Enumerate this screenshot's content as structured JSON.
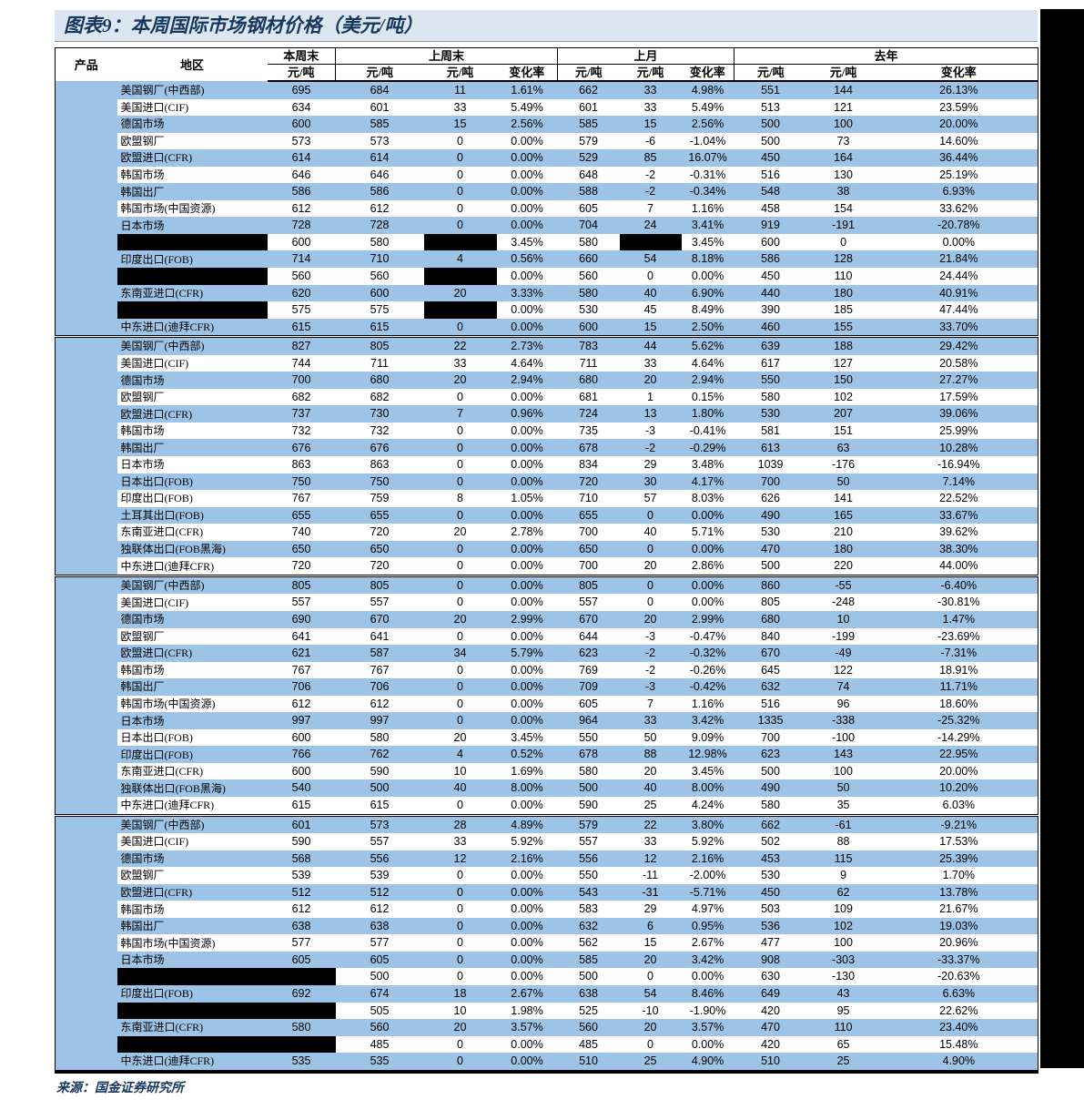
{
  "title": "图表9：本周国际市场钢材价格（美元/吨）",
  "source": "来源：国金证券研究所",
  "colors": {
    "stripe_blue": "#9DC3E6",
    "title_bar_bg": "#DCE6F1",
    "title_text": "#17375D",
    "redaction": "#000000"
  },
  "header": {
    "product": "产品",
    "region": "地区",
    "groups": [
      {
        "label": "本周末",
        "cols": [
          "元/吨"
        ]
      },
      {
        "label": "上周末",
        "cols": [
          "元/吨",
          "元/吨",
          "变化率"
        ]
      },
      {
        "label": "上月",
        "cols": [
          "元/吨",
          "元/吨",
          "变化率"
        ]
      },
      {
        "label": "去年",
        "cols": [
          "元/吨",
          "元/吨",
          "变化率"
        ]
      }
    ]
  },
  "sections": [
    {
      "product": null,
      "rows": [
        {
          "region": "美国钢厂(中西部)",
          "cells": [
            "695",
            "684",
            "11",
            "1.61%",
            "662",
            "33",
            "4.98%",
            "551",
            "144",
            "26.13%"
          ]
        },
        {
          "region": "美国进口(CIF)",
          "cells": [
            "634",
            "601",
            "33",
            "5.49%",
            "601",
            "33",
            "5.49%",
            "513",
            "121",
            "23.59%"
          ]
        },
        {
          "region": "德国市场",
          "cells": [
            "600",
            "585",
            "15",
            "2.56%",
            "585",
            "15",
            "2.56%",
            "500",
            "100",
            "20.00%"
          ]
        },
        {
          "region": "欧盟钢厂",
          "cells": [
            "573",
            "573",
            "0",
            "0.00%",
            "579",
            "-6",
            "-1.04%",
            "500",
            "73",
            "14.60%"
          ]
        },
        {
          "region": "欧盟进口(CFR)",
          "cells": [
            "614",
            "614",
            "0",
            "0.00%",
            "529",
            "85",
            "16.07%",
            "450",
            "164",
            "36.44%"
          ]
        },
        {
          "region": "韩国市场",
          "cells": [
            "646",
            "646",
            "0",
            "0.00%",
            "648",
            "-2",
            "-0.31%",
            "516",
            "130",
            "25.19%"
          ]
        },
        {
          "region": "韩国出厂",
          "cells": [
            "586",
            "586",
            "0",
            "0.00%",
            "588",
            "-2",
            "-0.34%",
            "548",
            "38",
            "6.93%"
          ]
        },
        {
          "region": "韩国市场(中国资源)",
          "cells": [
            "612",
            "612",
            "0",
            "0.00%",
            "605",
            "7",
            "1.16%",
            "458",
            "154",
            "33.62%"
          ]
        },
        {
          "region": "日本市场",
          "cells": [
            "728",
            "728",
            "0",
            "0.00%",
            "704",
            "24",
            "3.41%",
            "919",
            "-191",
            "-20.78%"
          ]
        },
        {
          "region": null,
          "cells": [
            "600",
            "580",
            null,
            "3.45%",
            "580",
            null,
            "3.45%",
            "600",
            "0",
            "0.00%"
          ]
        },
        {
          "region": "印度出口(FOB)",
          "cells": [
            "714",
            "710",
            "4",
            "0.56%",
            "660",
            "54",
            "8.18%",
            "586",
            "128",
            "21.84%"
          ]
        },
        {
          "region": null,
          "cells": [
            "560",
            "560",
            null,
            "0.00%",
            "560",
            "0",
            "0.00%",
            "450",
            "110",
            "24.44%"
          ]
        },
        {
          "region": "东南亚进口(CFR)",
          "cells": [
            "620",
            "600",
            "20",
            "3.33%",
            "580",
            "40",
            "6.90%",
            "440",
            "180",
            "40.91%"
          ]
        },
        {
          "region": null,
          "cells": [
            "575",
            "575",
            null,
            "0.00%",
            "530",
            "45",
            "8.49%",
            "390",
            "185",
            "47.44%"
          ]
        },
        {
          "region": "中东进口(迪拜CFR)",
          "cells": [
            "615",
            "615",
            "0",
            "0.00%",
            "600",
            "15",
            "2.50%",
            "460",
            "155",
            "33.70%"
          ]
        }
      ]
    },
    {
      "product": null,
      "rows": [
        {
          "region": "美国钢厂(中西部)",
          "cells": [
            "827",
            "805",
            "22",
            "2.73%",
            "783",
            "44",
            "5.62%",
            "639",
            "188",
            "29.42%"
          ]
        },
        {
          "region": "美国进口(CIF)",
          "cells": [
            "744",
            "711",
            "33",
            "4.64%",
            "711",
            "33",
            "4.64%",
            "617",
            "127",
            "20.58%"
          ]
        },
        {
          "region": "德国市场",
          "cells": [
            "700",
            "680",
            "20",
            "2.94%",
            "680",
            "20",
            "2.94%",
            "550",
            "150",
            "27.27%"
          ]
        },
        {
          "region": "欧盟钢厂",
          "cells": [
            "682",
            "682",
            "0",
            "0.00%",
            "681",
            "1",
            "0.15%",
            "580",
            "102",
            "17.59%"
          ]
        },
        {
          "region": "欧盟进口(CFR)",
          "cells": [
            "737",
            "730",
            "7",
            "0.96%",
            "724",
            "13",
            "1.80%",
            "530",
            "207",
            "39.06%"
          ]
        },
        {
          "region": "韩国市场",
          "cells": [
            "732",
            "732",
            "0",
            "0.00%",
            "735",
            "-3",
            "-0.41%",
            "581",
            "151",
            "25.99%"
          ]
        },
        {
          "region": "韩国出厂",
          "cells": [
            "676",
            "676",
            "0",
            "0.00%",
            "678",
            "-2",
            "-0.29%",
            "613",
            "63",
            "10.28%"
          ]
        },
        {
          "region": "日本市场",
          "cells": [
            "863",
            "863",
            "0",
            "0.00%",
            "834",
            "29",
            "3.48%",
            "1039",
            "-176",
            "-16.94%"
          ]
        },
        {
          "region": "日本出口(FOB)",
          "cells": [
            "750",
            "750",
            "0",
            "0.00%",
            "720",
            "30",
            "4.17%",
            "700",
            "50",
            "7.14%"
          ]
        },
        {
          "region": "印度出口(FOB)",
          "cells": [
            "767",
            "759",
            "8",
            "1.05%",
            "710",
            "57",
            "8.03%",
            "626",
            "141",
            "22.52%"
          ]
        },
        {
          "region": "土耳其出口(FOB)",
          "cells": [
            "655",
            "655",
            "0",
            "0.00%",
            "655",
            "0",
            "0.00%",
            "490",
            "165",
            "33.67%"
          ]
        },
        {
          "region": "东南亚进口(CFR)",
          "cells": [
            "740",
            "720",
            "20",
            "2.78%",
            "700",
            "40",
            "5.71%",
            "530",
            "210",
            "39.62%"
          ]
        },
        {
          "region": "独联体出口(FOB黑海)",
          "cells": [
            "650",
            "650",
            "0",
            "0.00%",
            "650",
            "0",
            "0.00%",
            "470",
            "180",
            "38.30%"
          ]
        },
        {
          "region": "中东进口(迪拜CFR)",
          "cells": [
            "720",
            "720",
            "0",
            "0.00%",
            "700",
            "20",
            "2.86%",
            "500",
            "220",
            "44.00%"
          ]
        }
      ]
    },
    {
      "product": null,
      "rows": [
        {
          "region": "美国钢厂(中西部)",
          "cells": [
            "805",
            "805",
            "0",
            "0.00%",
            "805",
            "0",
            "0.00%",
            "860",
            "-55",
            "-6.40%"
          ]
        },
        {
          "region": "美国进口(CIF)",
          "cells": [
            "557",
            "557",
            "0",
            "0.00%",
            "557",
            "0",
            "0.00%",
            "805",
            "-248",
            "-30.81%"
          ]
        },
        {
          "region": "德国市场",
          "cells": [
            "690",
            "670",
            "20",
            "2.99%",
            "670",
            "20",
            "2.99%",
            "680",
            "10",
            "1.47%"
          ]
        },
        {
          "region": "欧盟钢厂",
          "cells": [
            "641",
            "641",
            "0",
            "0.00%",
            "644",
            "-3",
            "-0.47%",
            "840",
            "-199",
            "-23.69%"
          ]
        },
        {
          "region": "欧盟进口(CFR)",
          "cells": [
            "621",
            "587",
            "34",
            "5.79%",
            "623",
            "-2",
            "-0.32%",
            "670",
            "-49",
            "-7.31%"
          ]
        },
        {
          "region": "韩国市场",
          "cells": [
            "767",
            "767",
            "0",
            "0.00%",
            "769",
            "-2",
            "-0.26%",
            "645",
            "122",
            "18.91%"
          ]
        },
        {
          "region": "韩国出厂",
          "cells": [
            "706",
            "706",
            "0",
            "0.00%",
            "709",
            "-3",
            "-0.42%",
            "632",
            "74",
            "11.71%"
          ]
        },
        {
          "region": "韩国市场(中国资源)",
          "cells": [
            "612",
            "612",
            "0",
            "0.00%",
            "605",
            "7",
            "1.16%",
            "516",
            "96",
            "18.60%"
          ]
        },
        {
          "region": "日本市场",
          "cells": [
            "997",
            "997",
            "0",
            "0.00%",
            "964",
            "33",
            "3.42%",
            "1335",
            "-338",
            "-25.32%"
          ]
        },
        {
          "region": "日本出口(FOB)",
          "cells": [
            "600",
            "580",
            "20",
            "3.45%",
            "550",
            "50",
            "9.09%",
            "700",
            "-100",
            "-14.29%"
          ]
        },
        {
          "region": "印度出口(FOB)",
          "cells": [
            "766",
            "762",
            "4",
            "0.52%",
            "678",
            "88",
            "12.98%",
            "623",
            "143",
            "22.95%"
          ]
        },
        {
          "region": "东南亚进口(CFR)",
          "cells": [
            "600",
            "590",
            "10",
            "1.69%",
            "580",
            "20",
            "3.45%",
            "500",
            "100",
            "20.00%"
          ]
        },
        {
          "region": "独联体出口(FOB黑海)",
          "cells": [
            "540",
            "500",
            "40",
            "8.00%",
            "500",
            "40",
            "8.00%",
            "490",
            "50",
            "10.20%"
          ]
        },
        {
          "region": "中东进口(迪拜CFR)",
          "cells": [
            "615",
            "615",
            "0",
            "0.00%",
            "590",
            "25",
            "4.24%",
            "580",
            "35",
            "6.03%"
          ]
        }
      ]
    },
    {
      "product": null,
      "rows": [
        {
          "region": "美国钢厂(中西部)",
          "cells": [
            "601",
            "573",
            "28",
            "4.89%",
            "579",
            "22",
            "3.80%",
            "662",
            "-61",
            "-9.21%"
          ]
        },
        {
          "region": "美国进口(CIF)",
          "cells": [
            "590",
            "557",
            "33",
            "5.92%",
            "557",
            "33",
            "5.92%",
            "502",
            "88",
            "17.53%"
          ]
        },
        {
          "region": "德国市场",
          "cells": [
            "568",
            "556",
            "12",
            "2.16%",
            "556",
            "12",
            "2.16%",
            "453",
            "115",
            "25.39%"
          ]
        },
        {
          "region": "欧盟钢厂",
          "cells": [
            "539",
            "539",
            "0",
            "0.00%",
            "550",
            "-11",
            "-2.00%",
            "530",
            "9",
            "1.70%"
          ]
        },
        {
          "region": "欧盟进口(CFR)",
          "cells": [
            "512",
            "512",
            "0",
            "0.00%",
            "543",
            "-31",
            "-5.71%",
            "450",
            "62",
            "13.78%"
          ]
        },
        {
          "region": "韩国市场",
          "cells": [
            "612",
            "612",
            "0",
            "0.00%",
            "583",
            "29",
            "4.97%",
            "503",
            "109",
            "21.67%"
          ]
        },
        {
          "region": "韩国出厂",
          "cells": [
            "638",
            "638",
            "0",
            "0.00%",
            "632",
            "6",
            "0.95%",
            "536",
            "102",
            "19.03%"
          ]
        },
        {
          "region": "韩国市场(中国资源)",
          "cells": [
            "577",
            "577",
            "0",
            "0.00%",
            "562",
            "15",
            "2.67%",
            "477",
            "100",
            "20.96%"
          ]
        },
        {
          "region": "日本市场",
          "cells": [
            "605",
            "605",
            "0",
            "0.00%",
            "585",
            "20",
            "3.42%",
            "908",
            "-303",
            "-33.37%"
          ]
        },
        {
          "region": null,
          "cells": [
            null,
            "500",
            "0",
            "0.00%",
            "500",
            "0",
            "0.00%",
            "630",
            "-130",
            "-20.63%"
          ]
        },
        {
          "region": "印度出口(FOB)",
          "cells": [
            "692",
            "674",
            "18",
            "2.67%",
            "638",
            "54",
            "8.46%",
            "649",
            "43",
            "6.63%"
          ]
        },
        {
          "region": null,
          "cells": [
            null,
            "505",
            "10",
            "1.98%",
            "525",
            "-10",
            "-1.90%",
            "420",
            "95",
            "22.62%"
          ]
        },
        {
          "region": "东南亚进口(CFR)",
          "cells": [
            "580",
            "560",
            "20",
            "3.57%",
            "560",
            "20",
            "3.57%",
            "470",
            "110",
            "23.40%"
          ]
        },
        {
          "region": null,
          "cells": [
            null,
            "485",
            "0",
            "0.00%",
            "485",
            "0",
            "0.00%",
            "420",
            "65",
            "15.48%"
          ]
        },
        {
          "region": "中东进口(迪拜CFR)",
          "cells": [
            "535",
            "535",
            "0",
            "0.00%",
            "510",
            "25",
            "4.90%",
            "510",
            "25",
            "4.90%"
          ]
        }
      ]
    }
  ]
}
